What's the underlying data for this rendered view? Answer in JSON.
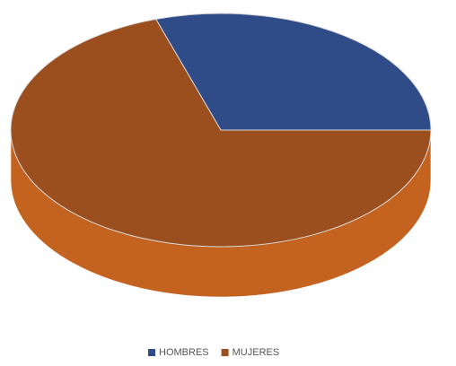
{
  "chart_data": {
    "type": "pie3d",
    "categories": [
      "HOMBRES",
      "MUJERES"
    ],
    "values": [
      30,
      70
    ],
    "colors": [
      "#2f4b88",
      "#9b4f1f"
    ],
    "side_colors": [
      "#24396a",
      "#c4621f"
    ],
    "legend": "bottom"
  }
}
